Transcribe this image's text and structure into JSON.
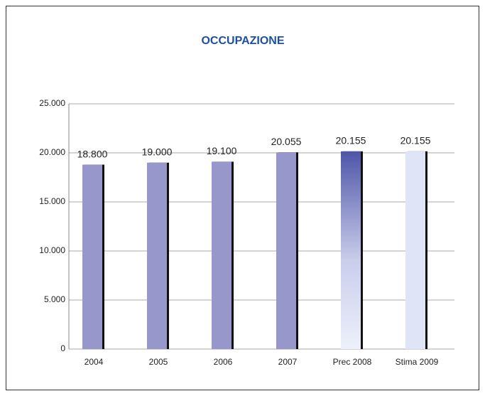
{
  "chart_data": {
    "type": "bar",
    "title": "OCCUPAZIONE",
    "categories": [
      "2004",
      "2005",
      "2006",
      "2007",
      "Prec 2008",
      "Stima 2009"
    ],
    "values": [
      18800,
      19000,
      19100,
      20055,
      20155,
      20155
    ],
    "value_labels": [
      "18.800",
      "19.000",
      "19.100",
      "20.055",
      "20.155",
      "20.155"
    ],
    "colors": [
      "#9797cc",
      "#9797cc",
      "#9797cc",
      "#9797cc",
      "#4e55a8",
      "#dfe5f6"
    ],
    "ylim": [
      0,
      25000
    ],
    "yticks": [
      {
        "value": 0,
        "label": "0"
      },
      {
        "value": 5000,
        "label": "5.000"
      },
      {
        "value": 10000,
        "label": "10.000"
      },
      {
        "value": 15000,
        "label": "15.000"
      },
      {
        "value": 20000,
        "label": "20.000"
      },
      {
        "value": 25000,
        "label": "25.000"
      }
    ],
    "grid": true
  }
}
